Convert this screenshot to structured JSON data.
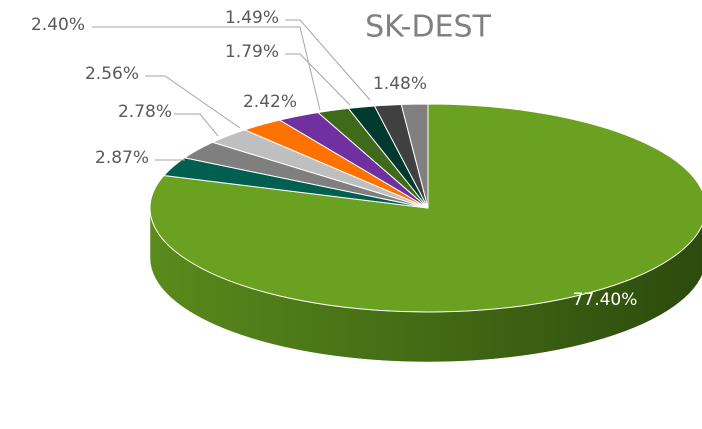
{
  "chart_data": {
    "type": "pie",
    "title": "SK-DEST",
    "values": [
      77.4,
      2.87,
      2.78,
      2.56,
      2.42,
      2.4,
      1.79,
      1.49,
      1.5,
      1.48
    ],
    "value_labels": [
      "77.40%",
      "2.87%",
      "2.78%",
      "2.56%",
      "2.42%",
      "2.40%",
      "1.79%",
      "1.49%",
      null,
      "1.48%"
    ],
    "colors": [
      "#6aa121",
      "#005f4f",
      "#7f7f7f",
      "#bfbfbf",
      "#ff7200",
      "#7030a0",
      "#3f6a19",
      "#003a2e",
      "#404040",
      "#808080"
    ]
  }
}
